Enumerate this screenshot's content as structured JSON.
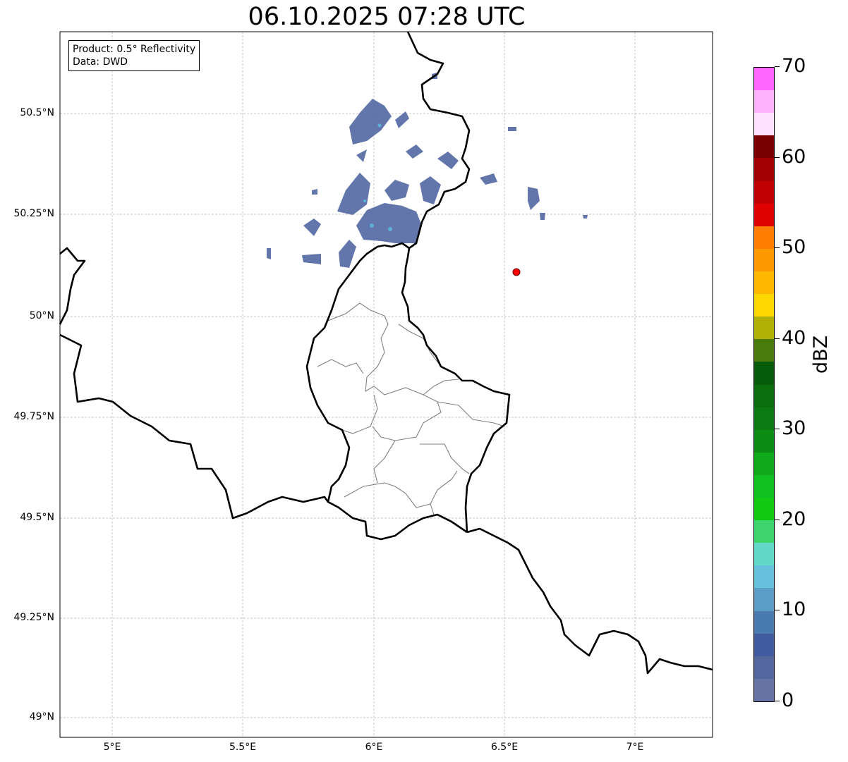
{
  "title": "06.10.2025 07:28 UTC",
  "infobox": {
    "line1": "Product: 0.5° Reflectivity",
    "line2": "Data: DWD"
  },
  "axes": {
    "lat_labels": [
      "50.5°N",
      "50.25°N",
      "50°N",
      "49.75°N",
      "49.5°N",
      "49.25°N",
      "49°N"
    ],
    "lon_labels": [
      "5°E",
      "5.5°E",
      "6°E",
      "6.5°E",
      "7°E"
    ]
  },
  "colorbar": {
    "label": "dBZ",
    "ticks": [
      "0",
      "10",
      "20",
      "30",
      "40",
      "50",
      "60",
      "70"
    ],
    "min": 0,
    "max": 70,
    "step": 2.5,
    "colors": [
      "#6673a5",
      "#53669e",
      "#415ba0",
      "#4a7bb0",
      "#5a9dc7",
      "#66c2dc",
      "#63d8c8",
      "#3dd56b",
      "#12c912",
      "#10bf20",
      "#0fa91a",
      "#0d8c14",
      "#0b7a10",
      "#0a6e0d",
      "#065c09",
      "#4a7a0a",
      "#b0b007",
      "#ffd700",
      "#ffb700",
      "#ff9900",
      "#ff7d00",
      "#e00000",
      "#c00000",
      "#a00000",
      "#7a0000",
      "#ffe0ff",
      "#ffb3ff",
      "#ff66ff",
      "#e83de8"
    ]
  },
  "marker": {
    "color": "#ff0000"
  },
  "radar_color": "#5a6fa8"
}
